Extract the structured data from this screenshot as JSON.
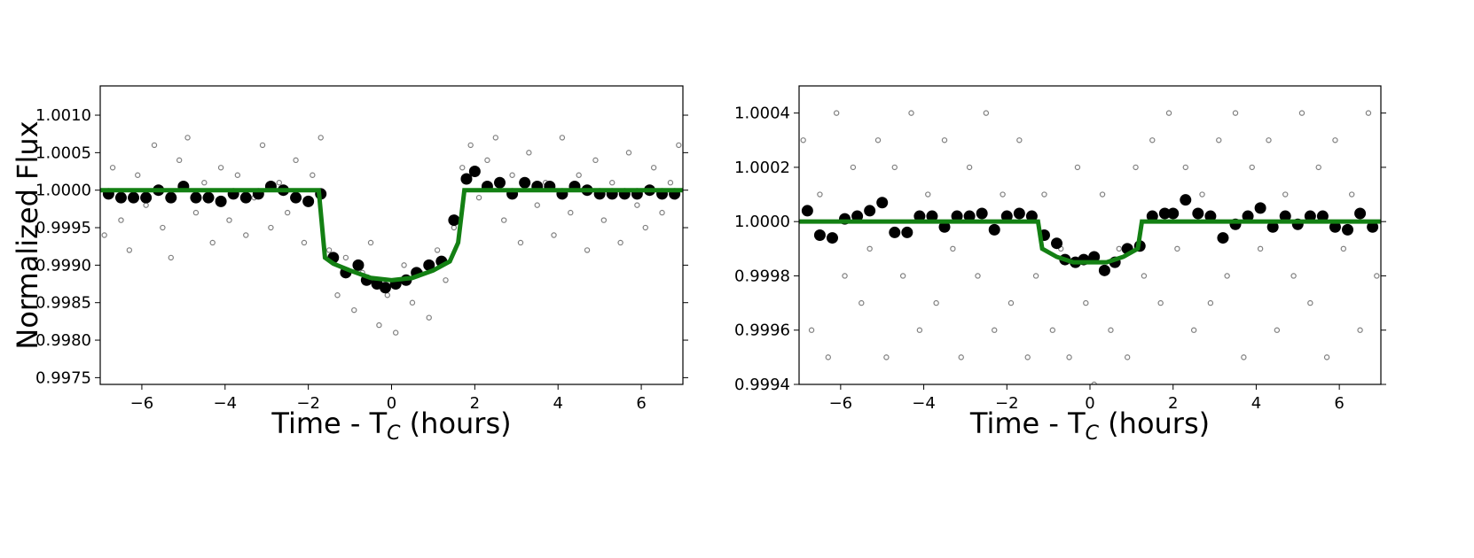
{
  "chart_data": [
    {
      "type": "scatter",
      "xlabel": {
        "text": "Time - T",
        "subscript": "C",
        "suffix": " (hours)"
      },
      "ylabel": "Normalized Flux",
      "xlim": [
        -7,
        7
      ],
      "ylim": [
        0.99741,
        1.00139
      ],
      "xticks": [
        {
          "value": -6,
          "label": "−6"
        },
        {
          "value": -4,
          "label": "−4"
        },
        {
          "value": -2,
          "label": "−2"
        },
        0,
        2,
        4,
        6
      ],
      "yticks": [
        0.9975,
        {
          "value": 0.998,
          "label": "0.9980"
        },
        0.9985,
        {
          "value": 0.999,
          "label": "0.9990"
        },
        0.9995,
        {
          "value": 1,
          "label": "1.0000"
        },
        1.0005,
        {
          "value": 1.001,
          "label": "1.0010"
        }
      ],
      "series": [
        {
          "mode": "markers",
          "filled": false,
          "color": "#808080",
          "x": [
            -6.9,
            -6.7,
            -6.5,
            -6.3,
            -6.1,
            -5.9,
            -5.7,
            -5.5,
            -5.3,
            -5.1,
            -4.9,
            -4.7,
            -4.5,
            -4.3,
            -4.1,
            -3.9,
            -3.7,
            -3.5,
            -3.3,
            -3.1,
            -2.9,
            -2.7,
            -2.5,
            -2.3,
            -2.1,
            -1.9,
            -1.7,
            -1.5,
            -1.3,
            -1.1,
            -0.9,
            -0.7,
            -0.5,
            -0.3,
            -0.1,
            0.1,
            0.3,
            0.5,
            0.7,
            0.9,
            1.1,
            1.3,
            1.5,
            1.7,
            1.9,
            2.1,
            2.3,
            2.5,
            2.7,
            2.9,
            3.1,
            3.3,
            3.5,
            3.7,
            3.9,
            4.1,
            4.3,
            4.5,
            4.7,
            4.9,
            5.1,
            5.3,
            5.5,
            5.7,
            5.9,
            6.1,
            6.3,
            6.5,
            6.7,
            6.9
          ],
          "values": [
            0.9994,
            1.0003,
            0.9996,
            0.9992,
            1.0002,
            0.9998,
            1.0006,
            0.9995,
            0.9991,
            1.0004,
            1.0007,
            0.9997,
            1.0001,
            0.9993,
            1.0003,
            0.9996,
            1.0002,
            0.9994,
            0.9999,
            1.0006,
            0.9995,
            1.0001,
            0.9997,
            1.0004,
            0.9993,
            1.0002,
            1.0007,
            0.9992,
            0.9986,
            0.9991,
            0.9984,
            0.9989,
            0.9993,
            0.9982,
            0.9986,
            0.9981,
            0.999,
            0.9985,
            0.9989,
            0.9983,
            0.9992,
            0.9988,
            0.9995,
            1.0003,
            1.0006,
            0.9999,
            1.0004,
            1.0007,
            0.9996,
            1.0002,
            0.9993,
            1.0005,
            0.9998,
            1.0001,
            0.9994,
            1.0007,
            0.9997,
            1.0002,
            0.9992,
            1.0004,
            0.9996,
            1.0001,
            0.9993,
            1.0005,
            0.9998,
            0.9995,
            1.0003,
            0.9997,
            1.0001,
            1.0006
          ]
        },
        {
          "mode": "markers",
          "filled": true,
          "color": "#000000",
          "x": [
            -6.8,
            -6.5,
            -6.2,
            -5.9,
            -5.6,
            -5.3,
            -5.0,
            -4.7,
            -4.4,
            -4.1,
            -3.8,
            -3.5,
            -3.2,
            -2.9,
            -2.6,
            -2.3,
            -2.0,
            -1.7,
            -1.4,
            -1.1,
            -0.8,
            -0.6,
            -0.35,
            -0.15,
            0.1,
            0.35,
            0.6,
            0.9,
            1.2,
            1.5,
            1.8,
            2.0,
            2.3,
            2.6,
            2.9,
            3.2,
            3.5,
            3.8,
            4.1,
            4.4,
            4.7,
            5.0,
            5.3,
            5.6,
            5.9,
            6.2,
            6.5,
            6.8
          ],
          "values": [
            0.99995,
            0.9999,
            0.9999,
            0.9999,
            1.0,
            0.9999,
            1.00005,
            0.9999,
            0.9999,
            0.99985,
            0.99995,
            0.9999,
            0.99995,
            1.00005,
            1.0,
            0.9999,
            0.99985,
            0.99995,
            0.9991,
            0.9989,
            0.999,
            0.9988,
            0.99875,
            0.9987,
            0.99875,
            0.9988,
            0.9989,
            0.999,
            0.99905,
            0.9996,
            1.00015,
            1.00025,
            1.00005,
            1.0001,
            0.99995,
            1.0001,
            1.00005,
            1.00005,
            0.99995,
            1.00005,
            1.0,
            0.99995,
            0.99995,
            0.99995,
            0.99995,
            1.0,
            0.99995,
            0.99995
          ]
        },
        {
          "mode": "line",
          "color": "#138013",
          "x": [
            -7,
            -1.75,
            -1.6,
            -1.4,
            -1.0,
            -0.5,
            0,
            0.5,
            1.0,
            1.4,
            1.6,
            1.75,
            7
          ],
          "values": [
            1,
            1,
            0.9991,
            0.99902,
            0.99893,
            0.99883,
            0.9988,
            0.99883,
            0.99893,
            0.99905,
            0.9993,
            1,
            1
          ]
        }
      ]
    },
    {
      "type": "scatter",
      "xlabel": {
        "text": "Time - T",
        "subscript": "C",
        "suffix": " (hours)"
      },
      "xlim": [
        -7,
        7
      ],
      "ylim": [
        0.9994,
        1.0005
      ],
      "xticks": [
        {
          "value": -6,
          "label": "−6"
        },
        {
          "value": -4,
          "label": "−4"
        },
        {
          "value": -2,
          "label": "−2"
        },
        0,
        2,
        4,
        6
      ],
      "yticks": [
        0.9994,
        0.9996,
        0.9998,
        {
          "value": 1,
          "label": "1.0000"
        },
        1.0002,
        1.0004
      ],
      "series": [
        {
          "mode": "markers",
          "filled": false,
          "color": "#808080",
          "x": [
            -6.9,
            -6.7,
            -6.5,
            -6.3,
            -6.1,
            -5.9,
            -5.7,
            -5.5,
            -5.3,
            -5.1,
            -4.9,
            -4.7,
            -4.5,
            -4.3,
            -4.1,
            -3.9,
            -3.7,
            -3.5,
            -3.3,
            -3.1,
            -2.9,
            -2.7,
            -2.5,
            -2.3,
            -2.1,
            -1.9,
            -1.7,
            -1.5,
            -1.3,
            -1.1,
            -0.9,
            -0.7,
            -0.5,
            -0.3,
            -0.1,
            0.1,
            0.3,
            0.5,
            0.7,
            0.9,
            1.1,
            1.3,
            1.5,
            1.7,
            1.9,
            2.1,
            2.3,
            2.5,
            2.7,
            2.9,
            3.1,
            3.3,
            3.5,
            3.7,
            3.9,
            4.1,
            4.3,
            4.5,
            4.7,
            4.9,
            5.1,
            5.3,
            5.5,
            5.7,
            5.9,
            6.1,
            6.3,
            6.5,
            6.7,
            6.9
          ],
          "values": [
            1.0003,
            0.9996,
            1.0001,
            0.9995,
            1.0004,
            0.9998,
            1.0002,
            0.9997,
            0.9999,
            1.0003,
            0.9995,
            1.0002,
            0.9998,
            1.0004,
            0.9996,
            1.0001,
            0.9997,
            1.0003,
            0.9999,
            0.9995,
            1.0002,
            0.9998,
            1.0004,
            0.9996,
            1.0001,
            0.9997,
            1.0003,
            0.9995,
            0.9998,
            1.0001,
            0.9996,
            0.9999,
            0.9995,
            1.0002,
            0.9997,
            0.9994,
            1.0001,
            0.9996,
            0.9999,
            0.9995,
            1.0002,
            0.9998,
            1.0003,
            0.9997,
            1.0004,
            0.9999,
            1.0002,
            0.9996,
            1.0001,
            0.9997,
            1.0003,
            0.9998,
            1.0004,
            0.9995,
            1.0002,
            0.9999,
            1.0003,
            0.9996,
            1.0001,
            0.9998,
            1.0004,
            0.9997,
            1.0002,
            0.9995,
            1.0003,
            0.9999,
            1.0001,
            0.9996,
            1.0004,
            0.9998
          ]
        },
        {
          "mode": "markers",
          "filled": true,
          "color": "#000000",
          "x": [
            -6.8,
            -6.5,
            -6.2,
            -5.9,
            -5.6,
            -5.3,
            -5.0,
            -4.7,
            -4.4,
            -4.1,
            -3.8,
            -3.5,
            -3.2,
            -2.9,
            -2.6,
            -2.3,
            -2.0,
            -1.7,
            -1.4,
            -1.1,
            -0.8,
            -0.6,
            -0.35,
            -0.15,
            0.1,
            0.35,
            0.6,
            0.9,
            1.2,
            1.5,
            1.8,
            2.0,
            2.3,
            2.6,
            2.9,
            3.2,
            3.5,
            3.8,
            4.1,
            4.4,
            4.7,
            5.0,
            5.3,
            5.6,
            5.9,
            6.2,
            6.5,
            6.8
          ],
          "values": [
            1.00004,
            0.99995,
            0.99994,
            1.00001,
            1.00002,
            1.00004,
            1.00007,
            0.99996,
            0.99996,
            1.00002,
            1.00002,
            0.99998,
            1.00002,
            1.00002,
            1.00003,
            0.99997,
            1.00002,
            1.00003,
            1.00002,
            0.99995,
            0.99992,
            0.99986,
            0.99985,
            0.99986,
            0.99987,
            0.99982,
            0.99985,
            0.9999,
            0.99991,
            1.00002,
            1.00003,
            1.00003,
            1.00008,
            1.00003,
            1.00002,
            0.99994,
            0.99999,
            1.00002,
            1.00005,
            0.99998,
            1.00002,
            0.99999,
            1.00002,
            1.00002,
            0.99998,
            0.99997,
            1.00003,
            0.99998
          ]
        },
        {
          "mode": "line",
          "color": "#138013",
          "x": [
            -7,
            -1.25,
            -1.15,
            -0.8,
            -0.4,
            0,
            0.4,
            0.8,
            1.15,
            1.25,
            7
          ],
          "values": [
            1,
            1,
            0.9999,
            0.99987,
            0.99985,
            0.99985,
            0.99985,
            0.99987,
            0.9999,
            1,
            1
          ]
        }
      ]
    }
  ]
}
